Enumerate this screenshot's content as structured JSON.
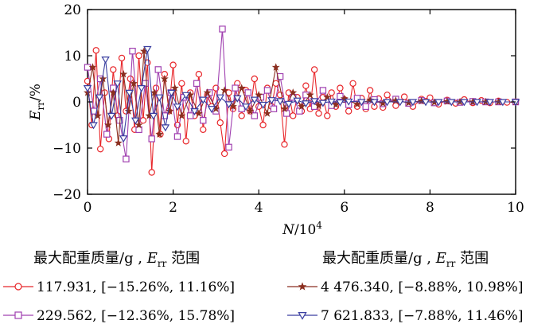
{
  "chart_data": {
    "type": "line",
    "title": "",
    "xlabel_italic": "N",
    "xlabel_rest": "/10",
    "xlabel_sup": "4",
    "ylabel_italic": "E",
    "ylabel_sub": "rr",
    "ylabel_rest": "/%",
    "xlim": [
      0,
      10
    ],
    "ylim": [
      -20,
      20
    ],
    "x_ticks": [
      0,
      2,
      4,
      6,
      8,
      10
    ],
    "y_ticks": [
      -20,
      -10,
      0,
      10,
      20
    ],
    "x_tick_labels": [
      "0",
      "2",
      "4",
      "6",
      "8",
      "10"
    ],
    "y_tick_labels": [
      "−20",
      "−10",
      "0",
      "10",
      "20"
    ],
    "legend_header_left_pre": "最大配重质量/g , ",
    "legend_header_left_e": "E",
    "legend_header_left_sub": "rr",
    "legend_header_left_post": " 范围",
    "legend_header_right_pre": "最大配重质量/g , ",
    "legend_header_right_e": "E",
    "legend_header_right_sub": "rr",
    "legend_header_right_post": " 范围",
    "series": [
      {
        "name": "117.931, [−15.26%, 11.16%]",
        "color": "#e8262a",
        "marker": "circle",
        "x": [
          0,
          0.1,
          0.2,
          0.3,
          0.4,
          0.5,
          0.6,
          0.7,
          0.8,
          0.9,
          1.0,
          1.1,
          1.2,
          1.3,
          1.4,
          1.5,
          1.6,
          1.7,
          1.8,
          1.9,
          2.0,
          2.1,
          2.2,
          2.3,
          2.4,
          2.5,
          2.6,
          2.7,
          2.8,
          2.9,
          3.0,
          3.1,
          3.2,
          3.3,
          3.4,
          3.5,
          3.6,
          3.7,
          3.8,
          3.9,
          4.0,
          4.1,
          4.2,
          4.3,
          4.4,
          4.5,
          4.6,
          4.7,
          4.8,
          4.9,
          5.0,
          5.1,
          5.2,
          5.3,
          5.4,
          5.5,
          5.6,
          5.7,
          5.8,
          5.9,
          6.0,
          6.1,
          6.2,
          6.3,
          6.4,
          6.5,
          6.6,
          6.7,
          6.8,
          6.9,
          7.0,
          7.2,
          7.4,
          7.6,
          7.8,
          8.0,
          8.2,
          8.4,
          8.6,
          8.8,
          9.0,
          9.2,
          9.4,
          9.6,
          9.8,
          10.0
        ],
        "values": [
          4.5,
          -5,
          11.16,
          -10.2,
          2,
          -8,
          7,
          -3,
          9.5,
          -2,
          5,
          -6,
          10,
          -4,
          8.5,
          -15.26,
          3,
          -7,
          6,
          -2,
          8,
          -5,
          4,
          -8.5,
          2,
          -3,
          6,
          -6,
          1.5,
          -1,
          3,
          -4.5,
          -11.2,
          2,
          -1.5,
          4,
          -3,
          2.5,
          -2,
          5,
          -1,
          -5,
          3,
          -1,
          4,
          1.5,
          -9.2,
          2,
          -3,
          1,
          -2,
          3.5,
          -1.5,
          7,
          -2.5,
          1,
          -3,
          2,
          -1,
          3,
          0.5,
          -2,
          4,
          -1,
          0.8,
          -1.5,
          2.5,
          -1,
          0.7,
          -1.2,
          1.5,
          -0.8,
          1.1,
          -1,
          0.6,
          0.9,
          -0.5,
          0.4,
          -0.3,
          0.5,
          -0.2,
          0.3,
          -0.2,
          0.2,
          -0.1,
          0
        ]
      },
      {
        "name": "229.562, [−12.36%, 15.78%]",
        "color": "#a040b0",
        "marker": "square",
        "x": [
          0,
          0.15,
          0.3,
          0.45,
          0.6,
          0.75,
          0.9,
          1.05,
          1.2,
          1.35,
          1.5,
          1.65,
          1.8,
          1.95,
          2.1,
          2.25,
          2.4,
          2.55,
          2.7,
          2.85,
          3.0,
          3.15,
          3.3,
          3.45,
          3.6,
          3.75,
          3.9,
          4.05,
          4.2,
          4.35,
          4.5,
          4.65,
          4.8,
          4.95,
          5.1,
          5.3,
          5.5,
          5.7,
          5.9,
          6.1,
          6.3,
          6.5,
          6.7,
          6.9,
          7.2,
          7.5,
          7.8,
          8.1,
          8.4,
          8.7,
          9.0,
          9.3,
          9.6,
          10.0
        ],
        "values": [
          7.5,
          -2,
          5,
          -7,
          3,
          -4,
          -12.36,
          11,
          -6,
          4,
          -8,
          7,
          -3,
          2,
          -7.5,
          1,
          -3,
          4,
          -4,
          2,
          -2,
          15.78,
          -9.8,
          3,
          -1.5,
          2,
          -3,
          1,
          2.5,
          -1.5,
          5.5,
          -2.5,
          1,
          -2,
          1.5,
          -1,
          2.5,
          -0.8,
          1.2,
          -0.6,
          0.8,
          -1,
          0.5,
          -0.4,
          0.6,
          -0.3,
          0.3,
          -0.2,
          0.2,
          -0.1,
          0.1,
          0,
          0,
          0
        ]
      },
      {
        "name": "4 476.340, [−8.88%, 10.98%]",
        "color": "#8b2f20",
        "marker": "star",
        "x": [
          0,
          0.12,
          0.24,
          0.36,
          0.48,
          0.6,
          0.72,
          0.84,
          0.96,
          1.08,
          1.2,
          1.32,
          1.44,
          1.56,
          1.68,
          1.8,
          1.92,
          2.04,
          2.2,
          2.4,
          2.6,
          2.8,
          3.0,
          3.2,
          3.4,
          3.6,
          3.8,
          4.0,
          4.2,
          4.4,
          4.6,
          4.8,
          5.0,
          5.2,
          5.4,
          5.6,
          5.8,
          6.0,
          6.3,
          6.6,
          6.9,
          7.2,
          7.5,
          7.8,
          8.1,
          8.4,
          8.7,
          9.0,
          9.3,
          9.6,
          10.0
        ],
        "values": [
          2,
          7.5,
          -3,
          5,
          -5,
          2,
          -8.88,
          6,
          -2,
          4,
          -5,
          10.98,
          -3,
          2,
          -7,
          5,
          -2,
          3,
          -3,
          1.5,
          -2.5,
          2,
          -1.5,
          2.5,
          -1,
          3,
          -2,
          1.5,
          -2.5,
          7.5,
          -1.5,
          2,
          -1,
          1.5,
          -0.8,
          1,
          -0.6,
          0.7,
          -0.5,
          0.4,
          -0.3,
          0.3,
          -0.2,
          0.2,
          -0.1,
          0.1,
          0,
          0,
          0,
          0,
          0
        ]
      },
      {
        "name": "7 621.833, [−7.88%, 11.46%]",
        "color": "#3a3fa0",
        "marker": "triangle-down",
        "x": [
          0,
          0.14,
          0.28,
          0.42,
          0.56,
          0.7,
          0.84,
          0.98,
          1.12,
          1.26,
          1.4,
          1.54,
          1.68,
          1.82,
          1.96,
          2.1,
          2.3,
          2.5,
          2.7,
          2.9,
          3.1,
          3.3,
          3.5,
          3.7,
          3.9,
          4.1,
          4.3,
          4.5,
          4.7,
          4.9,
          5.1,
          5.3,
          5.5,
          5.7,
          5.9,
          6.1,
          6.4,
          6.7,
          7.0,
          7.3,
          7.6,
          7.9,
          8.2,
          8.5,
          8.8,
          9.1,
          9.4,
          9.7,
          10.0
        ],
        "values": [
          3,
          -5,
          1,
          9.2,
          -3,
          4,
          -7.88,
          2,
          -4,
          3,
          11.46,
          -3,
          1,
          -5.5,
          2,
          -1,
          1.5,
          -2,
          0.5,
          -1.5,
          1,
          -0.5,
          0.8,
          -1,
          0.5,
          -0.6,
          0.4,
          0.2,
          -0.4,
          0.3,
          -0.3,
          0.2,
          -0.2,
          0.1,
          -0.1,
          0.1,
          0,
          0,
          0,
          0,
          0,
          0,
          0,
          0,
          0,
          0,
          0,
          0,
          0
        ]
      }
    ]
  }
}
